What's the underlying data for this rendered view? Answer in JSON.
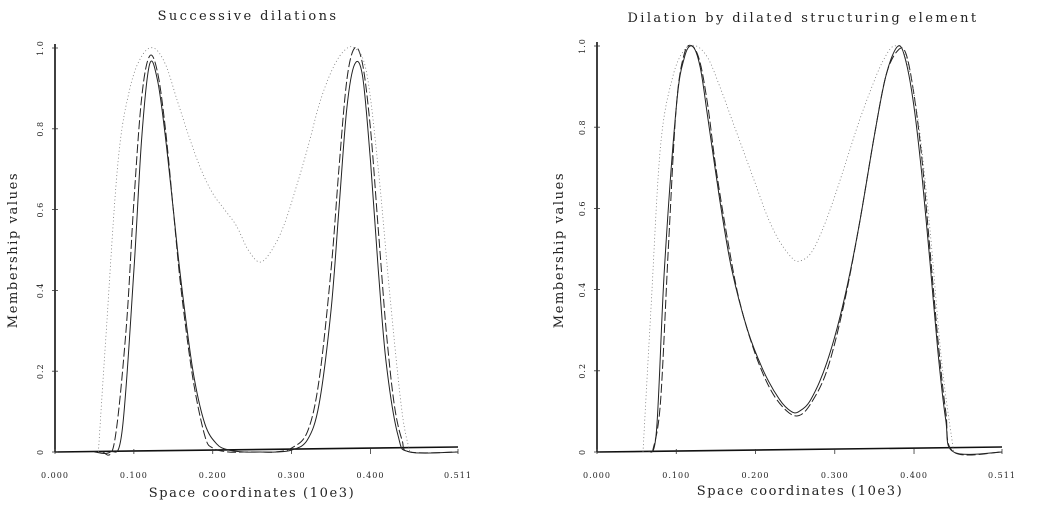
{
  "chart_data": [
    {
      "type": "line",
      "title": "Successive dilations",
      "xlabel": "Space coordinates (10e3)",
      "ylabel": "Membership values",
      "xlim": [
        0,
        0.511
      ],
      "ylim": [
        0,
        1.0
      ],
      "xticks": [
        "0.000",
        "0.100",
        "0.200",
        "0.300",
        "0.400",
        "0.511"
      ],
      "yticks": [
        "0",
        "0.2",
        "0.4",
        "0.6",
        "0.8",
        "1.0"
      ],
      "series": [
        {
          "style": "solid",
          "x": [
            0.05,
            0.07,
            0.085,
            0.1,
            0.11,
            0.12,
            0.13,
            0.14,
            0.15,
            0.16,
            0.175,
            0.19,
            0.205,
            0.22,
            0.24,
            0.26,
            0.28,
            0.3,
            0.32,
            0.335,
            0.35,
            0.36,
            0.37,
            0.38,
            0.39,
            0.4,
            0.41,
            0.42,
            0.435,
            0.45,
            0.511
          ],
          "y": [
            0,
            0,
            0.05,
            0.45,
            0.78,
            0.96,
            0.92,
            0.78,
            0.6,
            0.42,
            0.2,
            0.07,
            0.02,
            0.005,
            0,
            0,
            0,
            0.005,
            0.03,
            0.12,
            0.35,
            0.6,
            0.85,
            0.96,
            0.93,
            0.72,
            0.45,
            0.22,
            0.04,
            0,
            0
          ]
        },
        {
          "style": "dashed",
          "x": [
            0.06,
            0.075,
            0.09,
            0.1,
            0.11,
            0.12,
            0.13,
            0.14,
            0.15,
            0.16,
            0.175,
            0.19,
            0.2,
            0.22,
            0.24,
            0.26,
            0.28,
            0.3,
            0.32,
            0.335,
            0.35,
            0.36,
            0.37,
            0.38,
            0.39,
            0.4,
            0.41,
            0.42,
            0.43,
            0.44,
            0.45,
            0.511
          ],
          "y": [
            0,
            0.02,
            0.3,
            0.62,
            0.88,
            0.98,
            0.94,
            0.8,
            0.6,
            0.4,
            0.18,
            0.04,
            0.01,
            0,
            0,
            0,
            0,
            0.01,
            0.05,
            0.18,
            0.45,
            0.7,
            0.92,
            1.0,
            0.96,
            0.8,
            0.55,
            0.3,
            0.12,
            0.03,
            0,
            0
          ]
        },
        {
          "style": "dotted",
          "x": [
            0.055,
            0.065,
            0.08,
            0.095,
            0.11,
            0.125,
            0.14,
            0.155,
            0.17,
            0.185,
            0.2,
            0.215,
            0.23,
            0.245,
            0.26,
            0.275,
            0.29,
            0.305,
            0.32,
            0.335,
            0.35,
            0.365,
            0.38,
            0.395,
            0.41,
            0.425,
            0.44,
            0.45
          ],
          "y": [
            0,
            0.3,
            0.72,
            0.9,
            0.98,
            1.0,
            0.96,
            0.87,
            0.78,
            0.7,
            0.64,
            0.6,
            0.56,
            0.5,
            0.47,
            0.5,
            0.56,
            0.65,
            0.75,
            0.86,
            0.94,
            0.99,
            1.0,
            0.94,
            0.7,
            0.38,
            0.1,
            0
          ]
        }
      ]
    },
    {
      "type": "line",
      "title": "Dilation by dilated structuring element",
      "xlabel": "Space coordinates (10e3)",
      "ylabel": "Membership values",
      "xlim": [
        0,
        0.511
      ],
      "ylim": [
        0,
        1.0
      ],
      "xticks": [
        "0.000",
        "0.100",
        "0.200",
        "0.300",
        "0.400",
        "0.511"
      ],
      "yticks": [
        "0",
        "0.2",
        "0.4",
        "0.6",
        "0.8",
        "1.0"
      ],
      "series": [
        {
          "style": "solid",
          "x": [
            0.065,
            0.075,
            0.085,
            0.1,
            0.11,
            0.12,
            0.13,
            0.14,
            0.155,
            0.17,
            0.19,
            0.21,
            0.23,
            0.245,
            0.255,
            0.27,
            0.29,
            0.31,
            0.33,
            0.35,
            0.365,
            0.38,
            0.39,
            0.4,
            0.41,
            0.42,
            0.43,
            0.44,
            0.45,
            0.511
          ],
          "y": [
            0,
            0.05,
            0.45,
            0.85,
            0.97,
            1.0,
            0.95,
            0.82,
            0.62,
            0.45,
            0.3,
            0.2,
            0.13,
            0.1,
            0.1,
            0.13,
            0.22,
            0.36,
            0.55,
            0.78,
            0.93,
            1.0,
            0.96,
            0.85,
            0.68,
            0.47,
            0.25,
            0.08,
            0,
            0
          ]
        },
        {
          "style": "dashed",
          "x": [
            0.07,
            0.08,
            0.09,
            0.1,
            0.11,
            0.12,
            0.13,
            0.14,
            0.15,
            0.165,
            0.18,
            0.2,
            0.22,
            0.24,
            0.255,
            0.27,
            0.29,
            0.31,
            0.33,
            0.35,
            0.365,
            0.38,
            0.39,
            0.4,
            0.41,
            0.42,
            0.43,
            0.44,
            0.45,
            0.511
          ],
          "y": [
            0,
            0.12,
            0.5,
            0.85,
            0.98,
            1.0,
            0.96,
            0.85,
            0.7,
            0.52,
            0.37,
            0.24,
            0.15,
            0.1,
            0.09,
            0.12,
            0.2,
            0.35,
            0.55,
            0.78,
            0.93,
            0.99,
            0.98,
            0.88,
            0.72,
            0.5,
            0.28,
            0.1,
            0,
            0
          ]
        },
        {
          "style": "dotted",
          "x": [
            0.058,
            0.068,
            0.08,
            0.095,
            0.11,
            0.125,
            0.14,
            0.155,
            0.17,
            0.185,
            0.2,
            0.215,
            0.23,
            0.245,
            0.255,
            0.27,
            0.285,
            0.3,
            0.315,
            0.33,
            0.345,
            0.36,
            0.375,
            0.39,
            0.405,
            0.42,
            0.435,
            0.45
          ],
          "y": [
            0,
            0.35,
            0.75,
            0.92,
            0.99,
            1.0,
            0.97,
            0.9,
            0.82,
            0.74,
            0.66,
            0.58,
            0.52,
            0.48,
            0.47,
            0.49,
            0.55,
            0.63,
            0.72,
            0.81,
            0.89,
            0.96,
            1.0,
            0.97,
            0.82,
            0.55,
            0.22,
            0
          ]
        }
      ]
    }
  ]
}
